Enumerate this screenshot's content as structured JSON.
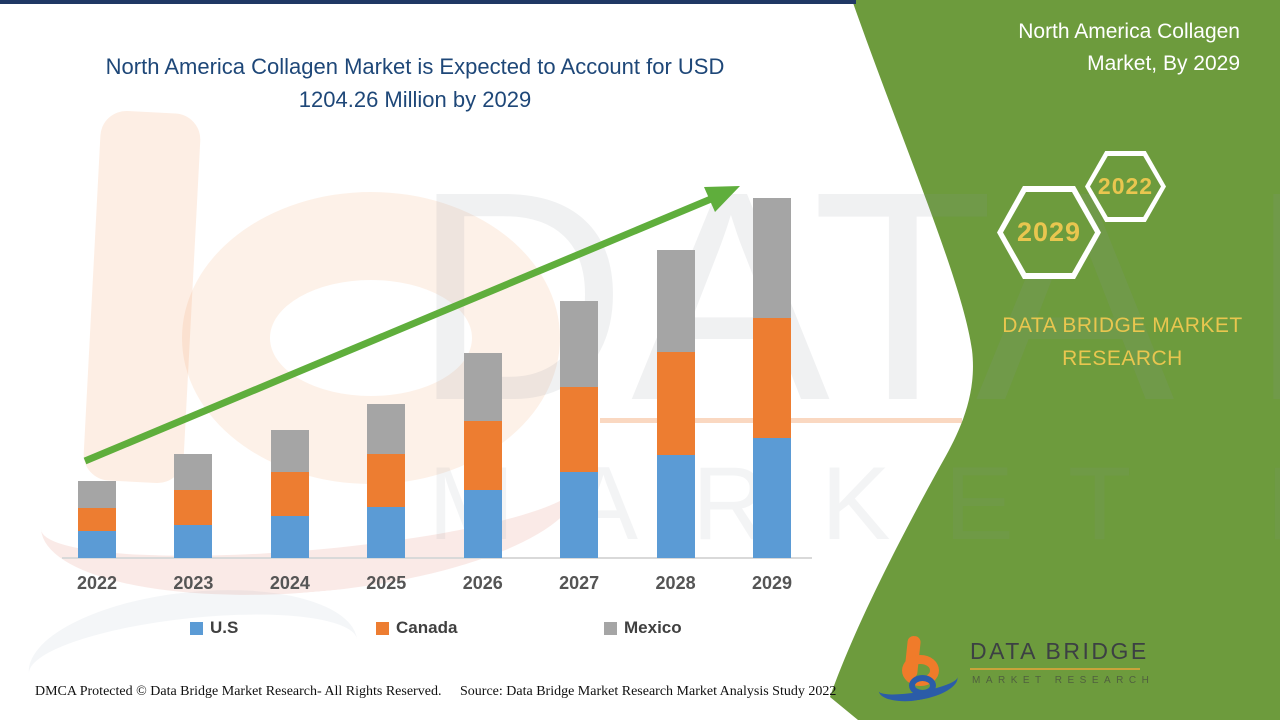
{
  "page": {
    "title_line1": "North America Collagen Market is Expected to Account for USD",
    "title_line2": "1204.26 Million by 2029"
  },
  "panel": {
    "title_line1": "North America Collagen",
    "title_line2": "Market, By 2029",
    "hexagons": [
      {
        "label": "2029"
      },
      {
        "label": "2022"
      }
    ],
    "brand_text": "DATA BRIDGE MARKET RESEARCH",
    "colors": {
      "panel_green": "#6D9B3D",
      "gold": "#E9C64F",
      "white": "#FFFFFF"
    }
  },
  "logo": {
    "name_line": "DATA BRIDGE",
    "sub_line": "MARKET RESEARCH"
  },
  "watermark": {
    "big_text": "DATA BRIDGE",
    "sub_text": "MARKET RESEARCH"
  },
  "footer": {
    "left": "DMCA Protected © Data Bridge Market Research- All Rights Reserved.",
    "right": "Source: Data Bridge Market Research Market Analysis Study 2022"
  },
  "chart_data": {
    "type": "bar",
    "stacked": true,
    "title": "North America Collagen Market is Expected to Account for USD 1204.26 Million by 2029",
    "unit": "USD Million",
    "categories": [
      "2022",
      "2023",
      "2024",
      "2025",
      "2026",
      "2027",
      "2028",
      "2029"
    ],
    "series": [
      {
        "name": "U.S",
        "color": "#5B9BD5",
        "values": [
          90,
          110,
          140,
          171,
          227,
          287,
          344,
          401.42
        ]
      },
      {
        "name": "Canada",
        "color": "#ED7D31",
        "values": [
          77,
          117,
          147,
          177,
          231,
          285,
          344,
          401.42
        ]
      },
      {
        "name": "Mexico",
        "color": "#A5A5A5",
        "values": [
          90,
          120,
          140,
          168,
          227,
          287,
          341,
          401.42
        ]
      }
    ],
    "totals": [
      257,
      347,
      427,
      516,
      685,
      859,
      1029,
      1204.26
    ],
    "highlight_total_2029": 1204.26,
    "xlabel": "",
    "ylabel": "",
    "y_axis_shown": false,
    "grid": false,
    "legend_position": "bottom",
    "trend_arrow": true,
    "trend_arrow_color": "#5FAE3C"
  }
}
